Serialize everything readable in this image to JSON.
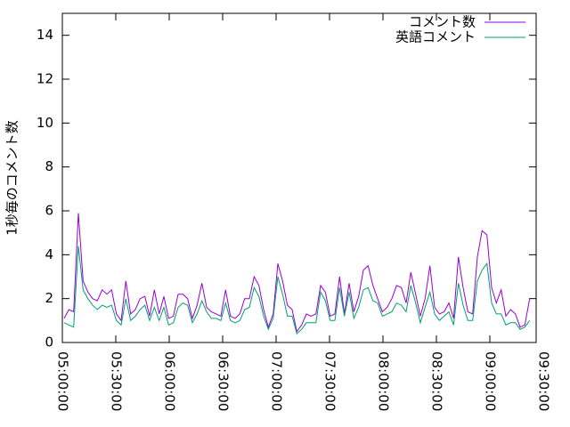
{
  "chart_data": {
    "type": "line",
    "y_label": "1秒毎のコメント数",
    "x": [
      "05:01:00",
      "05:03:40",
      "05:06:20",
      "05:09:00",
      "05:11:40",
      "05:14:20",
      "05:17:00",
      "05:19:40",
      "05:22:20",
      "05:25:00",
      "05:27:40",
      "05:30:20",
      "05:33:00",
      "05:35:40",
      "05:38:20",
      "05:41:00",
      "05:43:40",
      "05:46:20",
      "05:49:00",
      "05:51:40",
      "05:54:20",
      "05:57:00",
      "05:59:40",
      "06:02:20",
      "06:05:00",
      "06:07:40",
      "06:10:20",
      "06:13:00",
      "06:15:40",
      "06:18:20",
      "06:21:00",
      "06:23:40",
      "06:26:20",
      "06:29:00",
      "06:31:40",
      "06:34:20",
      "06:37:00",
      "06:39:40",
      "06:42:20",
      "06:45:00",
      "06:47:40",
      "06:50:20",
      "06:53:00",
      "06:55:40",
      "06:58:20",
      "07:01:00",
      "07:03:40",
      "07:06:20",
      "07:09:00",
      "07:11:40",
      "07:14:20",
      "07:17:00",
      "07:19:40",
      "07:22:20",
      "07:25:00",
      "07:27:40",
      "07:30:20",
      "07:33:00",
      "07:35:40",
      "07:38:20",
      "07:41:00",
      "07:43:40",
      "07:46:20",
      "07:49:00",
      "07:51:40",
      "07:54:20",
      "07:57:00",
      "07:59:40",
      "08:02:20",
      "08:05:00",
      "08:07:40",
      "08:10:20",
      "08:13:00",
      "08:15:40",
      "08:18:20",
      "08:21:00",
      "08:23:40",
      "08:26:20",
      "08:29:00",
      "08:31:40",
      "08:34:20",
      "08:37:00",
      "08:39:40",
      "08:42:20",
      "08:45:00",
      "08:47:40",
      "08:50:20",
      "08:53:00",
      "08:55:40",
      "08:58:20",
      "09:01:00",
      "09:03:40",
      "09:06:20",
      "09:09:00",
      "09:11:40",
      "09:14:20",
      "09:17:00",
      "09:19:40",
      "09:22:20"
    ],
    "series": [
      {
        "name": "コメント数",
        "color": "#9400d3",
        "values": [
          1.1,
          1.5,
          1.4,
          5.9,
          2.8,
          2.3,
          2.0,
          1.9,
          2.4,
          2.2,
          2.4,
          1.3,
          1.0,
          2.8,
          1.3,
          1.5,
          2.0,
          2.1,
          1.2,
          2.4,
          1.3,
          2.1,
          1.1,
          1.2,
          2.2,
          2.2,
          2.0,
          1.1,
          1.7,
          2.7,
          1.6,
          1.4,
          1.3,
          1.2,
          2.4,
          1.2,
          1.1,
          1.3,
          2.0,
          2.0,
          3.0,
          2.6,
          1.5,
          0.7,
          1.3,
          3.6,
          2.8,
          1.7,
          1.5,
          0.5,
          0.8,
          1.3,
          1.2,
          1.3,
          2.6,
          2.3,
          1.2,
          1.3,
          3.0,
          1.3,
          2.7,
          1.4,
          2.1,
          3.3,
          3.5,
          2.6,
          2.0,
          1.4,
          1.6,
          2.0,
          2.6,
          2.5,
          1.8,
          3.2,
          2.2,
          1.2,
          2.0,
          3.5,
          1.6,
          1.3,
          1.4,
          1.8,
          1.1,
          3.9,
          2.5,
          1.4,
          1.3,
          3.9,
          5.1,
          4.9,
          2.5,
          1.8,
          2.4,
          1.2,
          1.5,
          1.3,
          0.7,
          0.8,
          2.0
        ]
      },
      {
        "name": "英語コメント",
        "color": "#009e73",
        "values": [
          0.9,
          0.8,
          0.7,
          4.4,
          2.4,
          2.0,
          1.7,
          1.5,
          1.7,
          1.6,
          1.7,
          1.0,
          0.8,
          2.0,
          1.0,
          1.2,
          1.5,
          1.7,
          1.0,
          1.6,
          1.0,
          1.6,
          0.8,
          0.9,
          1.6,
          1.8,
          1.7,
          0.9,
          1.3,
          1.9,
          1.4,
          1.1,
          1.1,
          1.0,
          1.8,
          1.0,
          0.9,
          1.0,
          1.5,
          1.6,
          2.5,
          2.1,
          1.2,
          0.6,
          1.1,
          3.0,
          2.2,
          1.2,
          1.2,
          0.4,
          0.6,
          0.9,
          0.9,
          0.9,
          2.3,
          1.9,
          1.0,
          1.0,
          2.5,
          1.2,
          2.3,
          1.1,
          1.6,
          2.4,
          2.5,
          1.9,
          1.8,
          1.2,
          1.3,
          1.4,
          1.8,
          1.7,
          1.4,
          2.6,
          1.8,
          0.9,
          1.6,
          2.3,
          1.3,
          1.0,
          1.2,
          1.4,
          0.8,
          2.7,
          1.7,
          1.0,
          1.0,
          2.8,
          3.3,
          3.6,
          1.8,
          1.3,
          1.3,
          0.8,
          0.9,
          0.9,
          0.6,
          0.7,
          1.0
        ]
      }
    ],
    "xlim": [
      "05:00:00",
      "09:26:00"
    ],
    "xticks": [
      "05:00:00",
      "05:30:00",
      "06:00:00",
      "06:30:00",
      "07:00:00",
      "07:30:00",
      "08:00:00",
      "08:30:00",
      "09:00:00",
      "09:30:00"
    ],
    "ylim": [
      0,
      15
    ],
    "yticks": [
      0,
      2,
      4,
      6,
      8,
      10,
      12,
      14
    ],
    "legend": "top-right"
  }
}
